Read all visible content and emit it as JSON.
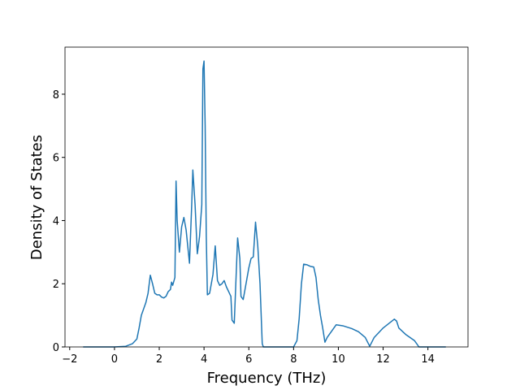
{
  "chart_data": {
    "type": "line",
    "xlabel": "Frequency (THz)",
    "ylabel": "Density of States",
    "xlim": [
      -2.21,
      15.79
    ],
    "ylim": [
      0,
      9.49
    ],
    "xticks": [
      {
        "value": -2,
        "label": "−2"
      },
      0,
      2,
      4,
      6,
      8,
      10,
      12,
      14
    ],
    "yticks": [
      0,
      2,
      4,
      6,
      8
    ],
    "series": [
      {
        "color": "#1f77b4",
        "x": [
          -1.4,
          0,
          0.5,
          0.8,
          1.0,
          1.1,
          1.2,
          1.4,
          1.5,
          1.6,
          1.7,
          1.8,
          1.9,
          2.0,
          2.1,
          2.2,
          2.3,
          2.4,
          2.5,
          2.55,
          2.6,
          2.7,
          2.75,
          2.8,
          2.9,
          3.0,
          3.1,
          3.2,
          3.3,
          3.35,
          3.45,
          3.5,
          3.6,
          3.7,
          3.8,
          3.9,
          3.95,
          4.0,
          4.05,
          4.1,
          4.15,
          4.25,
          4.4,
          4.5,
          4.6,
          4.7,
          4.8,
          4.9,
          5.0,
          5.1,
          5.2,
          5.25,
          5.35,
          5.5,
          5.6,
          5.65,
          5.75,
          5.9,
          6.0,
          6.1,
          6.2,
          6.3,
          6.4,
          6.5,
          6.6,
          6.65,
          8.0,
          8.15,
          8.25,
          8.35,
          8.45,
          8.6,
          8.75,
          8.9,
          9.0,
          9.1,
          9.2,
          9.3,
          9.4,
          9.5,
          9.7,
          9.9,
          10.2,
          10.6,
          10.9,
          11.2,
          11.4,
          11.6,
          12.0,
          12.5,
          12.6,
          12.7,
          13.0,
          13.4,
          13.6,
          14.8
        ],
        "values": [
          0,
          0,
          0.02,
          0.1,
          0.25,
          0.6,
          1.0,
          1.4,
          1.7,
          2.27,
          2.0,
          1.7,
          1.65,
          1.65,
          1.58,
          1.55,
          1.6,
          1.75,
          1.82,
          2.05,
          1.95,
          2.2,
          5.25,
          4.0,
          3.0,
          3.8,
          4.1,
          3.7,
          3.0,
          2.65,
          4.5,
          5.6,
          4.5,
          2.95,
          3.5,
          4.5,
          8.8,
          9.05,
          7.0,
          3.5,
          1.65,
          1.7,
          2.3,
          3.2,
          2.1,
          1.95,
          2.0,
          2.1,
          1.9,
          1.75,
          1.6,
          0.85,
          0.75,
          3.45,
          2.8,
          1.6,
          1.5,
          2.1,
          2.5,
          2.8,
          2.85,
          3.95,
          3.2,
          2.0,
          0.1,
          0,
          0,
          0.2,
          0.9,
          2.0,
          2.62,
          2.6,
          2.55,
          2.53,
          2.2,
          1.5,
          1.0,
          0.6,
          0.15,
          0.3,
          0.5,
          0.7,
          0.67,
          0.58,
          0.48,
          0.3,
          0.02,
          0.3,
          0.6,
          0.88,
          0.82,
          0.6,
          0.4,
          0.2,
          0,
          0
        ]
      }
    ]
  }
}
